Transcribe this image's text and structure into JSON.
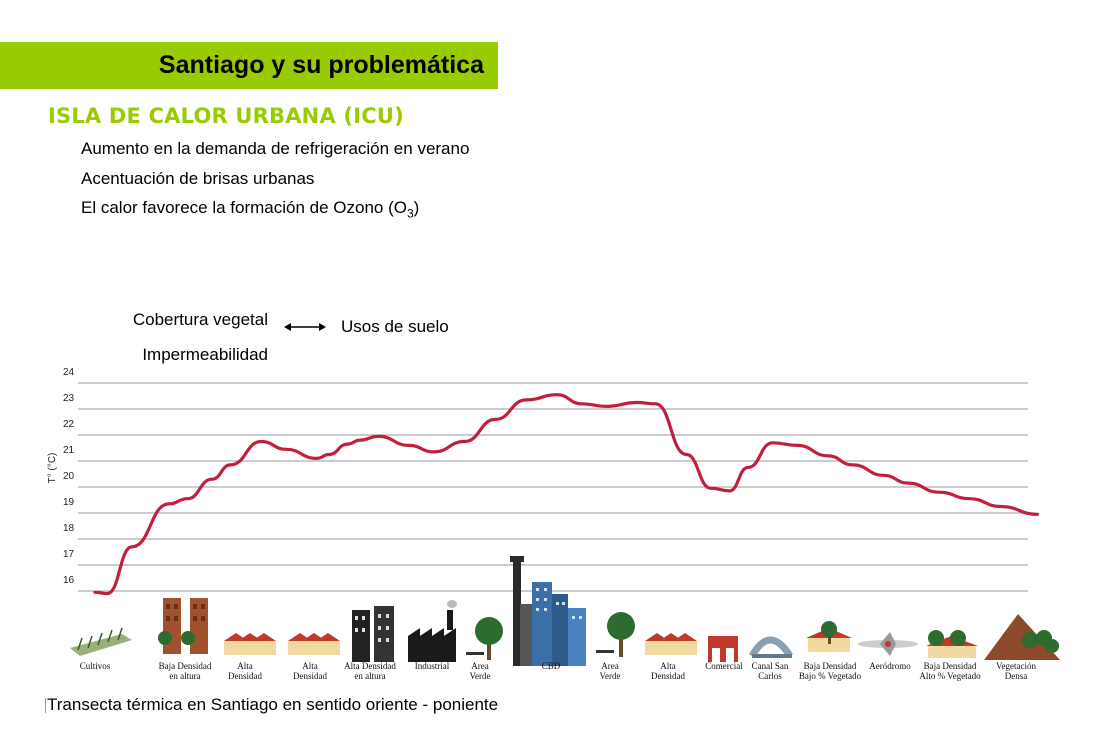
{
  "header": {
    "title": "Santiago y su problemática"
  },
  "section": {
    "heading": "ISLA DE CALOR URBANA (ICU)"
  },
  "bullets": [
    "Aumento en la demanda de refrigeración en verano",
    "Acentuación de brisas urbanas",
    "El calor favorece la formación de Ozono (O",
    "3",
    ")"
  ],
  "legend": {
    "left_top": "Cobertura vegetal",
    "left_bottom": "Impermeabilidad",
    "right": "Usos de suelo"
  },
  "caption": "Transecta térmica en Santiago en sentido oriente - poniente",
  "colors": {
    "title_bar": "#99cc00",
    "heading": "#99cc00",
    "line": "#c0203c",
    "grid": "#9a9a9a"
  },
  "chart_data": {
    "type": "line",
    "ylabel": "T° (°C)",
    "ylim": [
      16,
      24
    ],
    "yticks": [
      16,
      17,
      18,
      19,
      20,
      21,
      22,
      23,
      24
    ],
    "grid": "horizontal",
    "categories": [
      [
        "Cultivos"
      ],
      [
        "Baja Densidad",
        "en altura"
      ],
      [
        "Alta",
        "Densidad"
      ],
      [
        "Alta",
        "Densidad"
      ],
      [
        "Alta Densidad",
        "en altura"
      ],
      [
        "Industrial"
      ],
      [
        "Area",
        "Verde"
      ],
      [
        "CBD"
      ],
      [
        "Area",
        "Verde"
      ],
      [
        "Alta",
        "Densidad"
      ],
      [
        "Comercial"
      ],
      [
        "Canal San",
        "Carlos"
      ],
      [
        "Baja Densidad",
        "Bajo % Vegetado"
      ],
      [
        "Aeródromo"
      ],
      [
        "Baja Densidad",
        "Alto % Vegetado"
      ],
      [
        "Vegetación",
        "Densa"
      ]
    ],
    "category_icons": [
      "crop-field-icon",
      "brick-tower-icon",
      "row-houses-icon",
      "row-houses-icon",
      "dark-tower-icon",
      "factory-icon",
      "park-tree-icon",
      "skyscrapers-icon",
      "park-tree-icon",
      "row-houses-icon",
      "commercial-building-icon",
      "bridge-icon",
      "house-with-tree-icon",
      "airplane-icon",
      "houses-with-trees-icon",
      "forest-hill-icon"
    ],
    "series": [
      {
        "x": [
          0.0,
          0.2,
          0.6,
          1.2,
          1.5,
          1.9,
          2.2,
          2.7,
          3.1,
          3.6,
          3.8,
          4.1,
          4.3,
          4.6,
          5.1,
          5.5,
          6.0,
          6.5,
          7.0,
          7.5,
          7.9,
          8.3,
          8.8,
          9.1,
          9.6,
          10.0,
          10.3,
          10.6,
          11.0,
          11.4,
          11.9,
          12.3,
          12.8,
          13.2,
          13.7,
          14.2,
          14.7,
          15.3
        ],
        "y": [
          15.95,
          15.9,
          17.7,
          19.35,
          19.55,
          20.3,
          20.85,
          21.75,
          21.45,
          21.1,
          21.25,
          21.65,
          21.8,
          21.95,
          21.6,
          21.35,
          21.75,
          22.6,
          23.35,
          23.55,
          23.2,
          23.1,
          23.25,
          23.2,
          21.25,
          19.95,
          19.85,
          20.75,
          21.7,
          21.6,
          21.2,
          20.85,
          20.45,
          20.15,
          19.8,
          19.55,
          19.25,
          18.95
        ]
      }
    ]
  }
}
